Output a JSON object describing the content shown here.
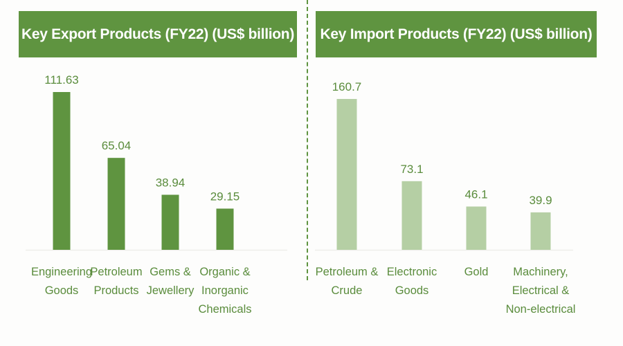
{
  "chart_data": [
    {
      "type": "bar",
      "title": "Key Export Products (FY22) (US$ billion)",
      "categories": [
        [
          "Engineering",
          "Goods"
        ],
        [
          "Petroleum",
          "Products"
        ],
        [
          "Gems &",
          "Jewellery"
        ],
        [
          "Organic &",
          "Inorganic",
          "Chemicals"
        ]
      ],
      "values": [
        111.63,
        65.04,
        38.94,
        29.15
      ],
      "value_labels": [
        "111.63",
        "65.04",
        "38.94",
        "29.15"
      ],
      "color": "#5f9440",
      "grid": false
    },
    {
      "type": "bar",
      "title": "Key Import Products (FY22) (US$ billion)",
      "categories": [
        [
          "Petroleum &",
          "Crude"
        ],
        [
          "Electronic",
          "Goods"
        ],
        [
          "Gold"
        ],
        [
          "Machinery,",
          "Electrical &",
          "Non-electrical"
        ]
      ],
      "values": [
        160.7,
        73.1,
        46.1,
        39.9
      ],
      "value_labels": [
        "160.7",
        "73.1",
        "46.1",
        "39.9"
      ],
      "color": "#b5cfa4",
      "grid": false
    }
  ]
}
